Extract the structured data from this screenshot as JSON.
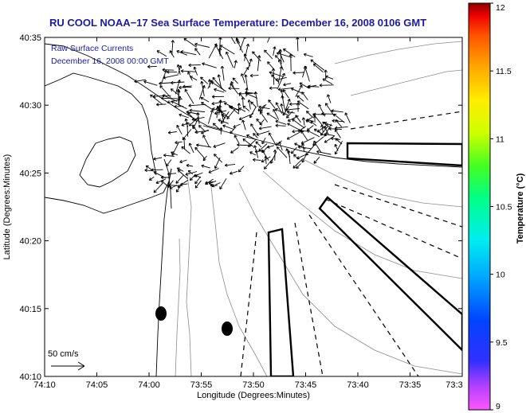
{
  "chart_data": {
    "type": "map-vector-field",
    "title": "RU COOL  NOAA−17  Sea Surface Temperature:  December 16, 2008 0106 GMT",
    "legend": {
      "line1": "Raw Surface Currents",
      "line2": "December 16, 2008 00:00 GMT"
    },
    "xlabel": "Longitude (Degrees:Minutes)",
    "ylabel": "Latitude (Degrees:Minutes)",
    "x_ticks": [
      "74:10",
      "74:05",
      "74:00",
      "73:55",
      "73:50",
      "73:45",
      "73:40",
      "73:35",
      "73:3"
    ],
    "y_ticks": [
      "40:35",
      "40:30",
      "40:25",
      "40:20",
      "40:15",
      "40:10"
    ],
    "xlim": [
      -74.1667,
      -73.5
    ],
    "ylim": [
      40.1667,
      40.5833
    ],
    "scale_arrow_label": "50 cm/s",
    "colorbar": {
      "label": "Temperature (°C)",
      "ticks": [
        "12",
        "11.5",
        "11",
        "10.5",
        "10",
        "9.5",
        "9"
      ],
      "range": [
        9,
        12
      ]
    }
  }
}
